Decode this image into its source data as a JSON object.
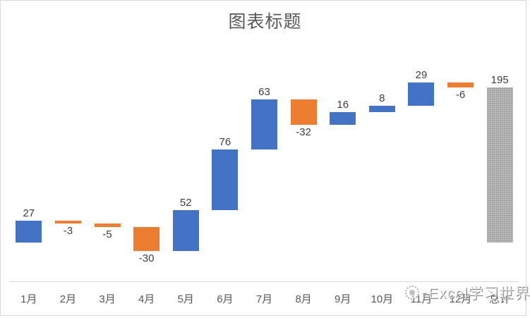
{
  "title": "图表标题",
  "watermark": {
    "icon": "circle-logo-icon",
    "text": "Excel学习世界"
  },
  "colors": {
    "increase": "#4472C4",
    "decrease": "#ED7D31",
    "total_fill": "#ABABAB",
    "axis_line": "#D9D9D9",
    "data_label_text": "#404040",
    "axis_label_text": "#595959",
    "title_text": "#595959",
    "frame_border": "#D9D9D9"
  },
  "chart_data": {
    "type": "bar",
    "subtype": "waterfall",
    "title": "图表标题",
    "categories": [
      "1月",
      "2月",
      "3月",
      "4月",
      "5月",
      "6月",
      "7月",
      "8月",
      "9月",
      "10月",
      "11月",
      "12月",
      "总计"
    ],
    "values": [
      27,
      -3,
      -5,
      -30,
      52,
      76,
      63,
      -32,
      16,
      8,
      29,
      -6,
      195
    ],
    "roles": [
      "increase",
      "decrease",
      "decrease",
      "decrease",
      "increase",
      "increase",
      "increase",
      "decrease",
      "increase",
      "increase",
      "increase",
      "decrease",
      "total"
    ],
    "data_labels": [
      "27",
      "-3",
      "-5",
      "-30",
      "52",
      "76",
      "63",
      "-32",
      "16",
      "8",
      "29",
      "-6",
      "195"
    ],
    "cumulative": [
      27,
      24,
      19,
      -11,
      41,
      117,
      180,
      148,
      164,
      172,
      201,
      195,
      195
    ],
    "total_value": 195,
    "ylim": [
      -50,
      250
    ],
    "xlabel": "",
    "ylabel": "",
    "grid": false,
    "legend": false,
    "data_label_position": "positive above bar, negative below bar"
  }
}
